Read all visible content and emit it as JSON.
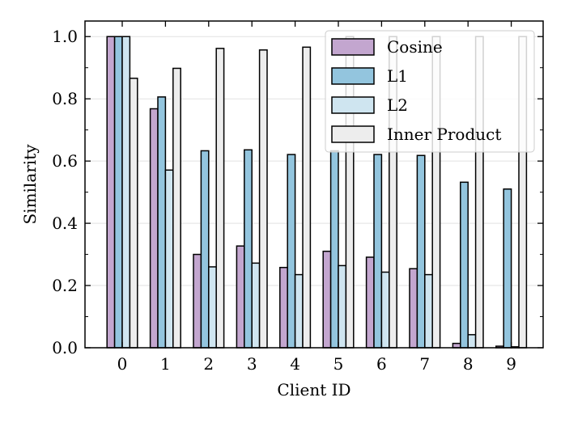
{
  "chart_data": {
    "type": "bar",
    "title": "",
    "xlabel": "Client ID",
    "ylabel": "Similarity",
    "categories": [
      "0",
      "1",
      "2",
      "3",
      "4",
      "5",
      "6",
      "7",
      "8",
      "9"
    ],
    "ylim": [
      0,
      1.05
    ],
    "yticks": [
      "0.0",
      "0.2",
      "0.4",
      "0.6",
      "0.8",
      "1.0"
    ],
    "grid": "horizontal, light",
    "legend_position": "top-right",
    "series": [
      {
        "name": "Cosine",
        "color": "#c3a6cf",
        "values": [
          1.0,
          0.768,
          0.3,
          0.327,
          0.258,
          0.31,
          0.291,
          0.254,
          0.014,
          0.005
        ]
      },
      {
        "name": "L1",
        "color": "#93c5de",
        "values": [
          1.0,
          0.806,
          0.633,
          0.636,
          0.621,
          0.633,
          0.621,
          0.618,
          0.532,
          0.51
        ]
      },
      {
        "name": "L2",
        "color": "#cfe5f0",
        "values": [
          1.0,
          0.571,
          0.26,
          0.272,
          0.235,
          0.264,
          0.243,
          0.235,
          0.042,
          0.003
        ]
      },
      {
        "name": "Inner Product",
        "color": "#ededed",
        "values": [
          0.866,
          0.898,
          0.962,
          0.957,
          0.966,
          1.0,
          1.0,
          1.0,
          1.0,
          1.0
        ]
      }
    ]
  }
}
